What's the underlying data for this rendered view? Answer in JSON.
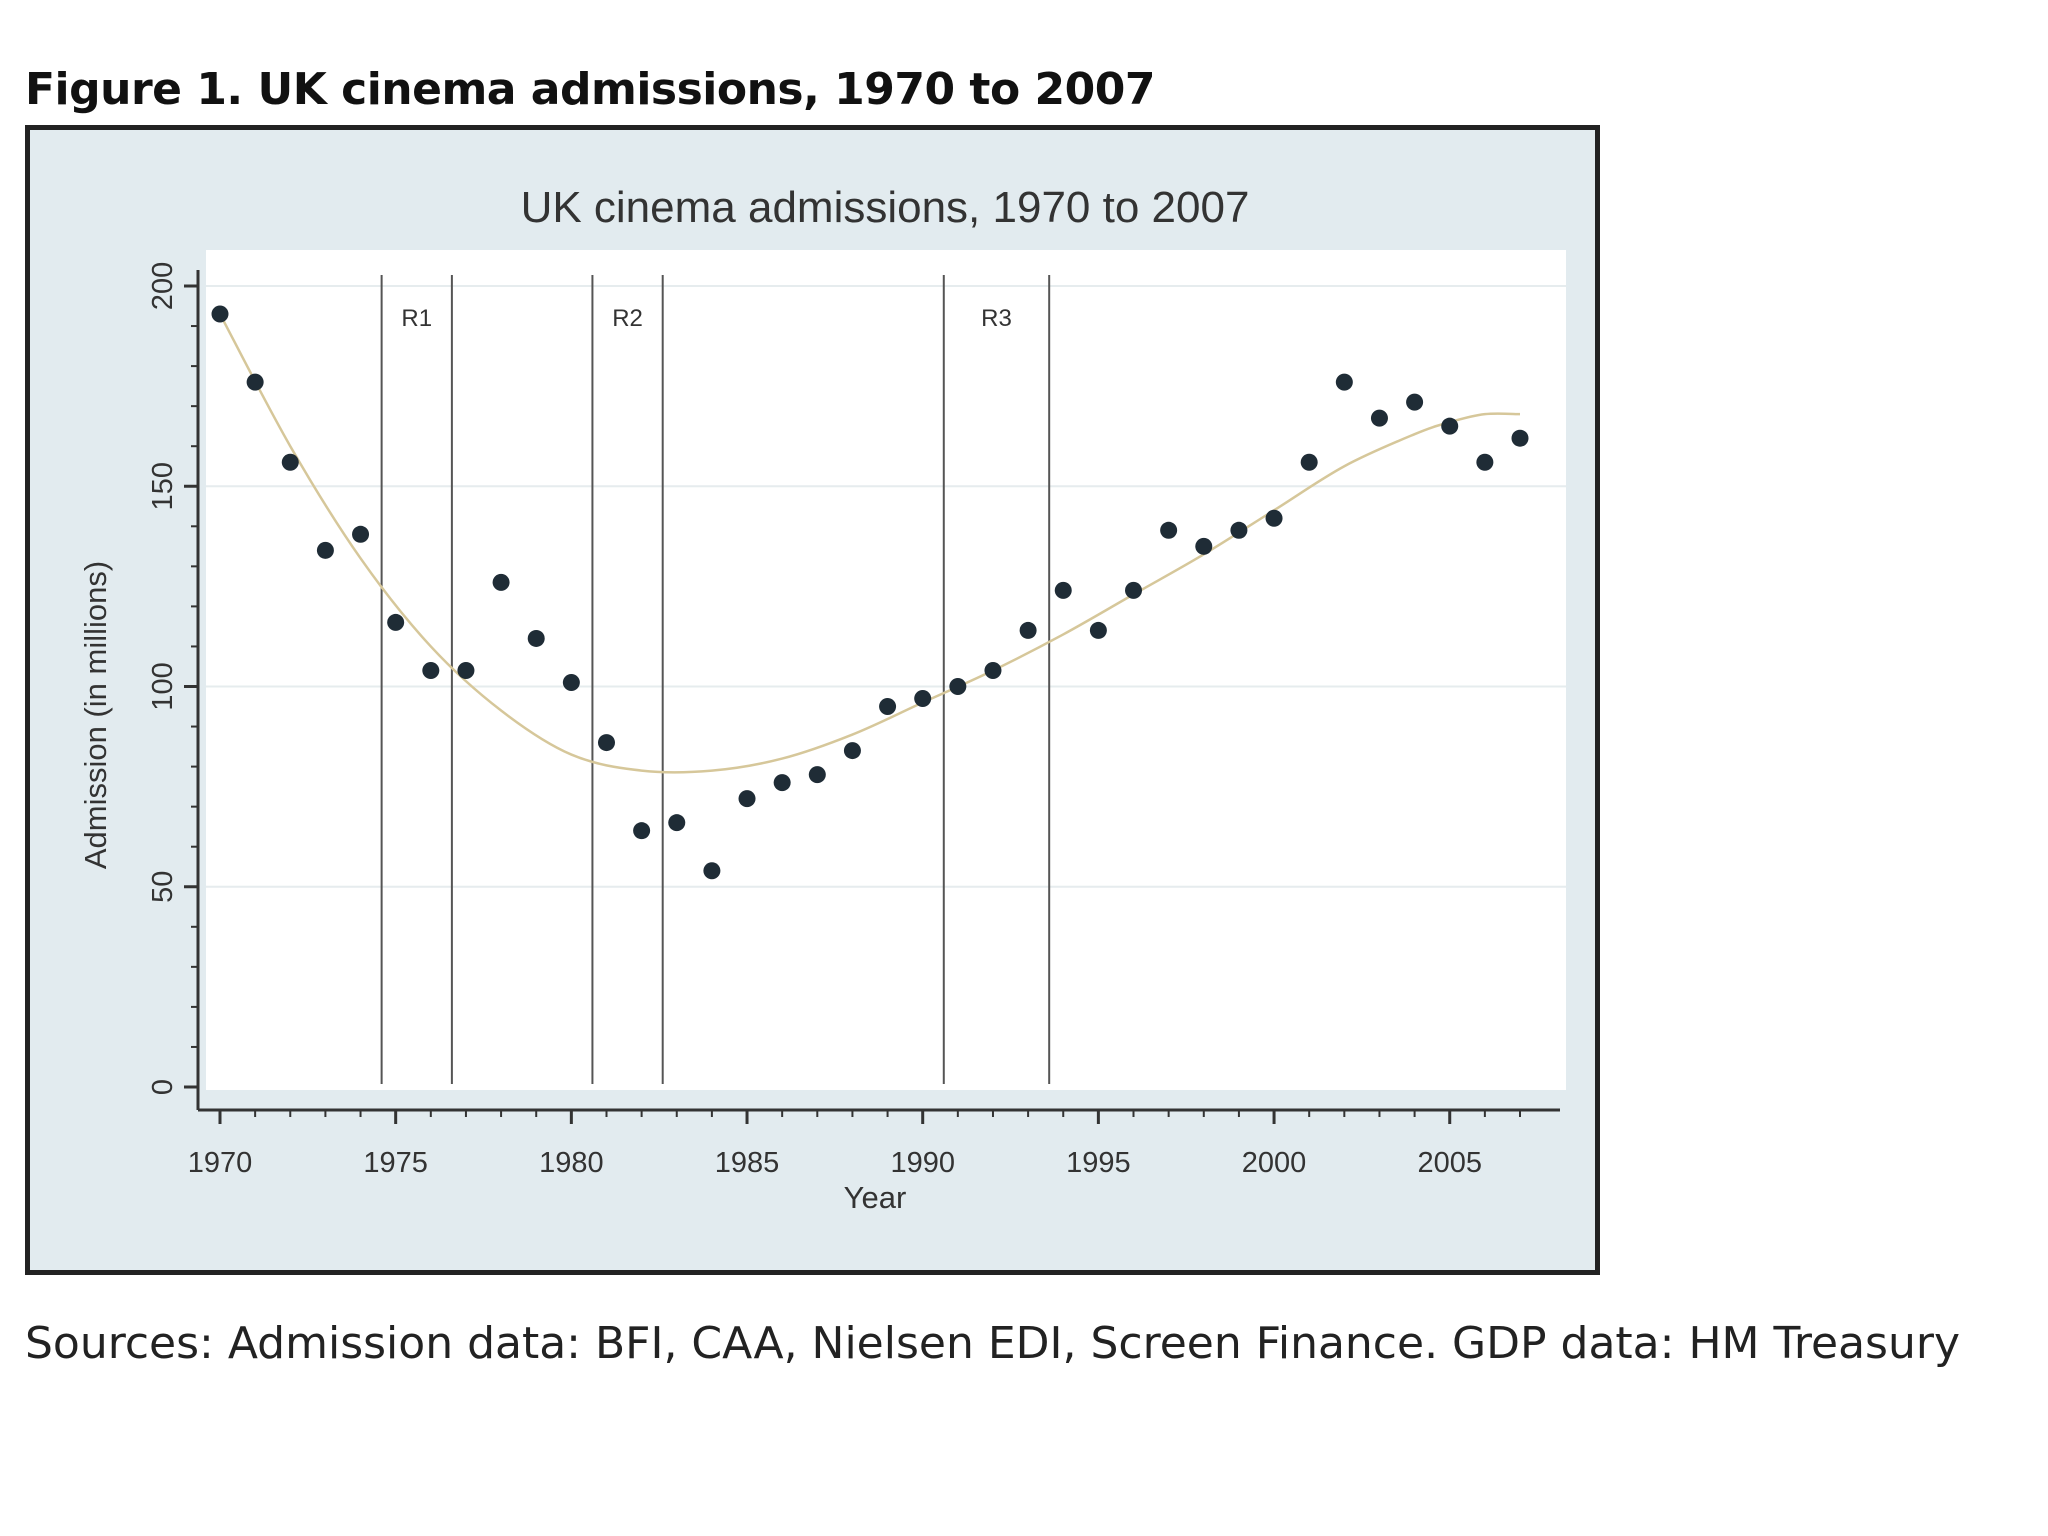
{
  "figure_title": "Figure 1. UK cinema admissions, 1970 to 2007",
  "sources": "Sources: Admission data: BFI, CAA, Nielsen EDI, Screen Finance. GDP data: HM Treasury",
  "colors": {
    "panel_background": "#e2ebef",
    "plot_background": "#ffffff",
    "points": "#1f2c36",
    "trend_line": "#d6c79a",
    "recession_lines": "#555555"
  },
  "chart_data": {
    "type": "scatter",
    "title": "UK cinema admissions, 1970 to 2007",
    "xlabel": "Year",
    "ylabel": "Admission (in millions)",
    "xlim": [
      1969.5,
      2007.7
    ],
    "ylim": [
      0,
      207
    ],
    "xticks": [
      1970,
      1975,
      1980,
      1985,
      1990,
      1995,
      2000,
      2005
    ],
    "yticks": [
      0,
      50,
      100,
      150,
      200
    ],
    "grid": true,
    "legend": "none",
    "x": [
      1970,
      1971,
      1972,
      1973,
      1974,
      1975,
      1976,
      1977,
      1978,
      1979,
      1980,
      1981,
      1982,
      1983,
      1984,
      1985,
      1986,
      1987,
      1988,
      1989,
      1990,
      1991,
      1992,
      1993,
      1994,
      1995,
      1996,
      1997,
      1998,
      1999,
      2000,
      2001,
      2002,
      2003,
      2004,
      2005,
      2006,
      2007
    ],
    "y": [
      193,
      176,
      156,
      134,
      138,
      116,
      104,
      104,
      126,
      112,
      101,
      86,
      64,
      66,
      54,
      72,
      76,
      78,
      84,
      95,
      97,
      100,
      104,
      114,
      124,
      114,
      124,
      139,
      135,
      139,
      142,
      156,
      176,
      167,
      171,
      165,
      156,
      162
    ],
    "trend": {
      "x": [
        1970,
        1972,
        1974,
        1976,
        1978,
        1980,
        1982,
        1984,
        1986,
        1988,
        1990,
        1992,
        1994,
        1996,
        1998,
        2000,
        2002,
        2004,
        2005,
        2006,
        2007
      ],
      "y": [
        193,
        160,
        132,
        110,
        94,
        83,
        79,
        79,
        82,
        88,
        96,
        104,
        113,
        123,
        133,
        144,
        155,
        163,
        166,
        168,
        168
      ]
    },
    "recessions": [
      {
        "label": "R1",
        "start": 1974.6,
        "end": 1976.6
      },
      {
        "label": "R2",
        "start": 1980.6,
        "end": 1982.6
      },
      {
        "label": "R3",
        "start": 1990.6,
        "end": 1993.6
      }
    ]
  }
}
